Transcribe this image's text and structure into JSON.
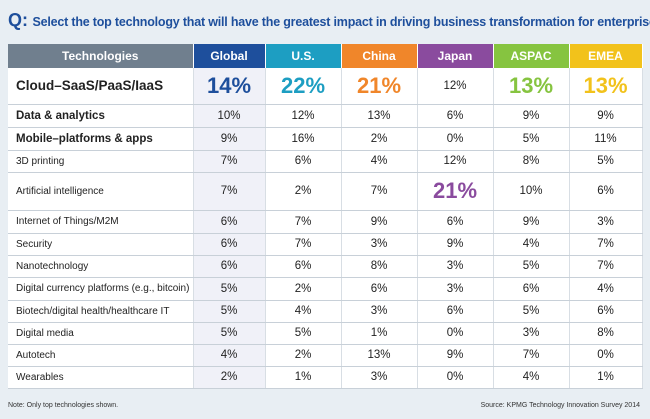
{
  "question": {
    "letter": "Q:",
    "text": "Select the top technology that will have the greatest impact in driving business transformation for enterprises."
  },
  "chart_data": {
    "type": "table",
    "columns": [
      {
        "label": "Technologies",
        "color": "#707f8e"
      },
      {
        "label": "Global",
        "color": "#1e4f9c"
      },
      {
        "label": "U.S.",
        "color": "#1d9ec2"
      },
      {
        "label": "China",
        "color": "#f0862a"
      },
      {
        "label": "Japan",
        "color": "#8a4b9e"
      },
      {
        "label": "ASPAC",
        "color": "#86c440"
      },
      {
        "label": "EMEA",
        "color": "#f2c21b"
      }
    ],
    "rows": [
      {
        "label": "Cloud–SaaS/PaaS/IaaS",
        "values": [
          "14%",
          "22%",
          "21%",
          "12%",
          "13%",
          "13%"
        ]
      },
      {
        "label": "Data & analytics",
        "values": [
          "10%",
          "12%",
          "13%",
          "6%",
          "9%",
          "9%"
        ]
      },
      {
        "label": "Mobile–platforms & apps",
        "values": [
          "9%",
          "16%",
          "2%",
          "0%",
          "5%",
          "11%"
        ]
      },
      {
        "label": "3D printing",
        "values": [
          "7%",
          "6%",
          "4%",
          "12%",
          "8%",
          "5%"
        ]
      },
      {
        "label": "Artificial intelligence",
        "values": [
          "7%",
          "2%",
          "7%",
          "21%",
          "10%",
          "6%"
        ]
      },
      {
        "label": "Internet of Things/M2M",
        "values": [
          "6%",
          "7%",
          "9%",
          "6%",
          "9%",
          "3%"
        ]
      },
      {
        "label": "Security",
        "values": [
          "6%",
          "7%",
          "3%",
          "9%",
          "4%",
          "7%"
        ]
      },
      {
        "label": "Nanotechnology",
        "values": [
          "6%",
          "6%",
          "8%",
          "3%",
          "5%",
          "7%"
        ]
      },
      {
        "label": "Digital currency platforms (e.g., bitcoin)",
        "values": [
          "5%",
          "2%",
          "6%",
          "3%",
          "6%",
          "4%"
        ]
      },
      {
        "label": "Biotech/digital health/healthcare IT",
        "values": [
          "5%",
          "4%",
          "3%",
          "6%",
          "5%",
          "6%"
        ]
      },
      {
        "label": "Digital media",
        "values": [
          "5%",
          "5%",
          "1%",
          "0%",
          "3%",
          "8%"
        ]
      },
      {
        "label": "Autotech",
        "values": [
          "4%",
          "2%",
          "13%",
          "9%",
          "7%",
          "0%"
        ]
      },
      {
        "label": "Wearables",
        "values": [
          "2%",
          "1%",
          "3%",
          "0%",
          "4%",
          "1%"
        ]
      }
    ],
    "highlights": [
      {
        "row": 0,
        "col": 1
      },
      {
        "row": 0,
        "col": 2
      },
      {
        "row": 0,
        "col": 3
      },
      {
        "row": 0,
        "col": 5
      },
      {
        "row": 0,
        "col": 6
      },
      {
        "row": 4,
        "col": 4
      }
    ]
  },
  "footer": {
    "note": "Note: Only top technologies shown.",
    "source": "Source: KPMG Technology Innovation Survey 2014"
  }
}
